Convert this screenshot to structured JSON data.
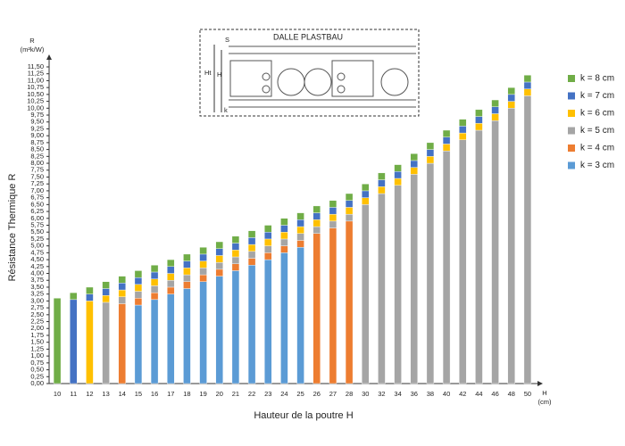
{
  "chart_data": {
    "type": "bar",
    "stacked": true,
    "y_title_short": "R",
    "y_unit": "(m²k/W)",
    "y_title": "Résistance Thermique R",
    "x_title": "Hauteur de la poutre H",
    "x_unit_label": "H",
    "x_unit": "(cm)",
    "inset": {
      "title": "DALLE PLASTBAU",
      "labels": [
        "S",
        "Ht",
        "H",
        "k"
      ]
    },
    "legend": "right",
    "grid": false,
    "categories": [
      "10",
      "11",
      "12",
      "13",
      "14",
      "15",
      "16",
      "17",
      "18",
      "19",
      "20",
      "21",
      "22",
      "23",
      "24",
      "25",
      "26",
      "27",
      "28",
      "30",
      "32",
      "34",
      "36",
      "38",
      "40",
      "42",
      "44",
      "46",
      "48",
      "50"
    ],
    "series": [
      {
        "name": "k = 3 cm",
        "color": "#5b9bd5",
        "values": [
          null,
          null,
          null,
          null,
          null,
          2.85,
          3.05,
          3.25,
          3.45,
          3.7,
          3.9,
          4.1,
          4.3,
          4.5,
          4.75,
          4.95,
          null,
          null,
          null,
          null,
          null,
          null,
          null,
          null,
          null,
          null,
          null,
          null,
          null,
          null
        ]
      },
      {
        "name": "k = 4 cm",
        "color": "#ed7d31",
        "values": [
          null,
          null,
          null,
          null,
          2.9,
          0.25,
          0.25,
          0.25,
          0.25,
          0.25,
          0.25,
          0.25,
          0.25,
          0.25,
          0.25,
          0.25,
          5.45,
          5.65,
          5.9,
          null,
          null,
          null,
          null,
          null,
          null,
          null,
          null,
          null,
          null,
          null
        ]
      },
      {
        "name": "k = 5 cm",
        "color": "#a5a5a5",
        "values": [
          null,
          null,
          null,
          2.95,
          0.25,
          0.25,
          0.25,
          0.25,
          0.25,
          0.25,
          0.25,
          0.25,
          0.25,
          0.25,
          0.25,
          0.25,
          0.25,
          0.25,
          0.25,
          6.5,
          6.9,
          7.2,
          7.6,
          8.0,
          8.45,
          8.85,
          9.2,
          9.55,
          10.0,
          10.45
        ]
      },
      {
        "name": "k = 6 cm",
        "color": "#ffc000",
        "values": [
          null,
          null,
          3.0,
          0.25,
          0.25,
          0.25,
          0.25,
          0.25,
          0.25,
          0.25,
          0.25,
          0.25,
          0.25,
          0.25,
          0.25,
          0.25,
          0.25,
          0.25,
          0.25,
          0.25,
          0.25,
          0.25,
          0.25,
          0.25,
          0.25,
          0.25,
          0.25,
          0.25,
          0.25,
          0.25
        ]
      },
      {
        "name": "k = 7 cm",
        "color": "#4472c4",
        "values": [
          null,
          3.05,
          0.25,
          0.25,
          0.25,
          0.25,
          0.25,
          0.25,
          0.25,
          0.25,
          0.25,
          0.25,
          0.25,
          0.25,
          0.25,
          0.25,
          0.25,
          0.25,
          0.25,
          0.25,
          0.25,
          0.25,
          0.25,
          0.25,
          0.25,
          0.25,
          0.25,
          0.25,
          0.25,
          0.25
        ]
      },
      {
        "name": "k = 8 cm",
        "color": "#70ad47",
        "values": [
          3.1,
          0.25,
          0.25,
          0.25,
          0.25,
          0.25,
          0.25,
          0.25,
          0.25,
          0.25,
          0.25,
          0.25,
          0.25,
          0.25,
          0.25,
          0.25,
          0.25,
          0.25,
          0.25,
          0.25,
          0.25,
          0.25,
          0.25,
          0.25,
          0.25,
          0.25,
          0.25,
          0.25,
          0.25,
          0.25
        ]
      }
    ],
    "ylim": [
      0,
      11.5
    ],
    "yticks": [
      {
        "value": 0,
        "label": "0,00"
      },
      {
        "value": 0.25,
        "label": "0,25"
      },
      {
        "value": 0.5,
        "label": "0,50"
      },
      {
        "value": 0.75,
        "label": "0,75"
      },
      {
        "value": 1,
        "label": "1,00"
      },
      {
        "value": 1.25,
        "label": "1,25"
      },
      {
        "value": 1.5,
        "label": "1,50"
      },
      {
        "value": 1.75,
        "label": "1,75"
      },
      {
        "value": 2,
        "label": "2,00"
      },
      {
        "value": 2.25,
        "label": "2,25"
      },
      {
        "value": 2.5,
        "label": "2,50"
      },
      {
        "value": 2.75,
        "label": "2,75"
      },
      {
        "value": 3,
        "label": "3,00"
      },
      {
        "value": 3.25,
        "label": "3,25"
      },
      {
        "value": 3.5,
        "label": "3,50"
      },
      {
        "value": 3.75,
        "label": "3,75"
      },
      {
        "value": 4,
        "label": "4,00"
      },
      {
        "value": 4.25,
        "label": "4,25"
      },
      {
        "value": 4.5,
        "label": "4,50"
      },
      {
        "value": 4.75,
        "label": "4,75"
      },
      {
        "value": 5,
        "label": "5,00"
      },
      {
        "value": 5.25,
        "label": "5,25"
      },
      {
        "value": 5.5,
        "label": "5,50"
      },
      {
        "value": 5.75,
        "label": "5,75"
      },
      {
        "value": 6,
        "label": "6,00"
      },
      {
        "value": 6.25,
        "label": "6,25"
      },
      {
        "value": 6.5,
        "label": "6,50"
      },
      {
        "value": 6.75,
        "label": "6,75"
      },
      {
        "value": 7,
        "label": "7,00"
      },
      {
        "value": 7.25,
        "label": "7,25"
      },
      {
        "value": 7.5,
        "label": "7,50"
      },
      {
        "value": 7.75,
        "label": "7,75"
      },
      {
        "value": 8,
        "label": "8,00"
      },
      {
        "value": 8.25,
        "label": "8,25"
      },
      {
        "value": 8.5,
        "label": "8,50"
      },
      {
        "value": 8.75,
        "label": "8,75"
      },
      {
        "value": 9,
        "label": "9,00"
      },
      {
        "value": 9.25,
        "label": "9,25"
      },
      {
        "value": 9.5,
        "label": "9,50"
      },
      {
        "value": 9.75,
        "label": "9,75"
      },
      {
        "value": 10,
        "label": "10,00"
      },
      {
        "value": 10.25,
        "label": "10,25"
      },
      {
        "value": 10.5,
        "label": "10,50"
      },
      {
        "value": 10.75,
        "label": "10,75"
      },
      {
        "value": 11,
        "label": "11,00"
      },
      {
        "value": 11.25,
        "label": "11,25"
      },
      {
        "value": 11.5,
        "label": "11,50"
      }
    ]
  }
}
